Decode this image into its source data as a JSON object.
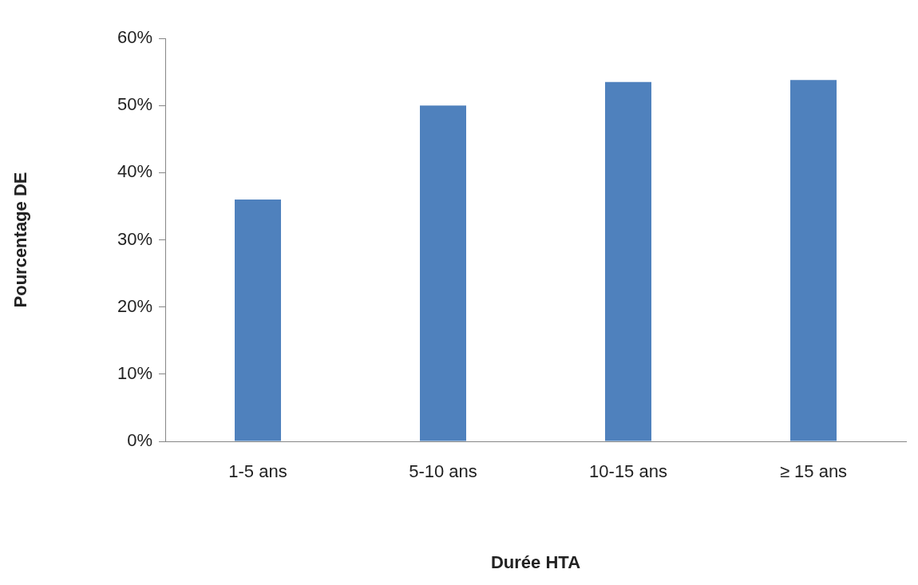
{
  "chart_data": {
    "type": "bar",
    "xlabel": "Durée HTA",
    "ylabel": "Pourcentage DE",
    "categories": [
      "1-5 ans",
      "5-10 ans",
      "10-15 ans",
      "≥ 15 ans"
    ],
    "values": [
      36,
      50,
      53.5,
      53.8
    ],
    "color": "#4f81bd",
    "ylim": [
      0,
      60
    ],
    "yticks": [
      {
        "value": 0,
        "label": "0%"
      },
      {
        "value": 10,
        "label": "10%"
      },
      {
        "value": 20,
        "label": "20%"
      },
      {
        "value": 30,
        "label": "30%"
      },
      {
        "value": 40,
        "label": "40%"
      },
      {
        "value": 50,
        "label": "50%"
      },
      {
        "value": 60,
        "label": "60%"
      }
    ],
    "grid": false,
    "legend": false
  }
}
